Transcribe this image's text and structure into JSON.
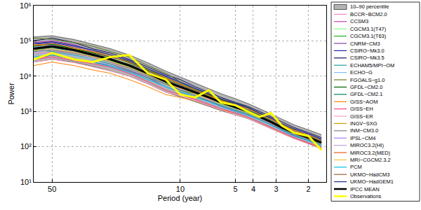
{
  "chart_data": {
    "type": "line",
    "log": true,
    "grid": true,
    "legend": "right",
    "x_label": "Period (year)",
    "y_label": "Power",
    "x": [
      63,
      50,
      38,
      30,
      24,
      19,
      15,
      12,
      10,
      8.3,
      7,
      6,
      5,
      4.3,
      3.7,
      3.2,
      2.8,
      2.4,
      2.0,
      1.7
    ],
    "xlim": [
      63,
      1.6
    ],
    "xticks": [
      50,
      10,
      5,
      4,
      3,
      2
    ],
    "ylim": [
      10,
      1000000
    ],
    "yticks": [
      {
        "value": 10,
        "label": "10¹"
      },
      {
        "value": 100,
        "label": "10²"
      },
      {
        "value": 1000,
        "label": "10³"
      },
      {
        "value": 10000,
        "label": "10⁴"
      },
      {
        "value": 100000,
        "label": "10⁵"
      },
      {
        "value": 1000000,
        "label": "10⁶"
      }
    ],
    "band": {
      "name": "10–90 percentile",
      "color": "#b4b4b4",
      "lower": [
        25000,
        30000,
        25000,
        19000,
        14000,
        10000,
        6000,
        3500,
        2600,
        1900,
        1400,
        1050,
        800,
        630,
        450,
        330,
        240,
        170,
        120,
        90
      ],
      "upper": [
        130000,
        140000,
        110000,
        80000,
        60000,
        40000,
        24000,
        14000,
        9500,
        6500,
        4500,
        3200,
        2300,
        1700,
        1200,
        850,
        600,
        420,
        300,
        220
      ]
    },
    "series": [
      {
        "name": "BCCR−BCM2.0",
        "color": "#ff80c0",
        "values": [
          40000,
          50000,
          45000,
          35000,
          25000,
          15000,
          10000,
          6000,
          4500,
          3000,
          2200,
          1500,
          1100,
          900,
          600,
          450,
          300,
          220,
          150,
          110
        ]
      },
      {
        "name": "CCSM3",
        "color": "#c040c0",
        "values": [
          90000,
          100000,
          80000,
          50000,
          35000,
          25000,
          14000,
          9000,
          6000,
          4000,
          3000,
          2000,
          1500,
          1200,
          800,
          600,
          400,
          300,
          200,
          150
        ]
      },
      {
        "name": "CGCM3.1(T47)",
        "color": "#80ff80",
        "values": [
          70000,
          60000,
          50000,
          40000,
          35000,
          22000,
          15000,
          8000,
          5000,
          3000,
          2000,
          1600,
          1200,
          900,
          650,
          500,
          380,
          260,
          170,
          120
        ]
      },
      {
        "name": "CGCM3.1(T63)",
        "color": "#20b020",
        "values": [
          50000,
          80000,
          60000,
          45000,
          28000,
          18000,
          11000,
          6500,
          4000,
          3200,
          2800,
          2000,
          1400,
          1100,
          750,
          550,
          330,
          240,
          190,
          140
        ]
      },
      {
        "name": "CNRM−CM3",
        "color": "#8040a0",
        "values": [
          30000,
          40000,
          30000,
          25000,
          20000,
          14000,
          9000,
          5000,
          3500,
          2500,
          2000,
          1400,
          1000,
          800,
          600,
          420,
          300,
          200,
          150,
          100
        ]
      },
      {
        "name": "CSIRO−Mk3.0",
        "color": "#2020c0",
        "values": [
          80000,
          90000,
          70000,
          55000,
          40000,
          28000,
          16000,
          10000,
          7000,
          4500,
          3200,
          2200,
          1600,
          1300,
          900,
          650,
          450,
          320,
          230,
          160
        ]
      },
      {
        "name": "CSIRO−Mk3.5",
        "color": "#101060",
        "values": [
          100000,
          120000,
          90000,
          60000,
          45000,
          30000,
          18000,
          11000,
          8000,
          5000,
          3500,
          2500,
          1800,
          1400,
          1000,
          700,
          500,
          350,
          250,
          180
        ]
      },
      {
        "name": "ECHAM5/MPI−OM",
        "color": "#20a0a0",
        "values": [
          60000,
          50000,
          40000,
          30000,
          22000,
          15000,
          9000,
          6000,
          4000,
          2800,
          2000,
          1500,
          1100,
          850,
          600,
          420,
          300,
          210,
          150,
          110
        ]
      },
      {
        "name": "ECHO−G",
        "color": "#80c0ff",
        "values": [
          40000,
          45000,
          38000,
          30000,
          20000,
          13000,
          8000,
          5000,
          3500,
          2600,
          1800,
          1300,
          950,
          750,
          520,
          380,
          270,
          190,
          140,
          100
        ]
      },
      {
        "name": "FGOALS−g1.0",
        "color": "#608020",
        "values": [
          120000,
          110000,
          90000,
          70000,
          50000,
          35000,
          20000,
          12000,
          7000,
          4000,
          3000,
          2000,
          1400,
          1000,
          700,
          500,
          350,
          250,
          180,
          130
        ]
      },
      {
        "name": "GFDL−CM2.0",
        "color": "#006000",
        "values": [
          70000,
          80000,
          60000,
          45000,
          35000,
          25000,
          15000,
          9000,
          6000,
          4200,
          3000,
          2200,
          1700,
          1300,
          900,
          600,
          420,
          300,
          200,
          150
        ]
      },
      {
        "name": "GFDL−CM2.1",
        "color": "#008060",
        "values": [
          55000,
          65000,
          50000,
          38000,
          30000,
          22000,
          14000,
          8000,
          5500,
          3800,
          2700,
          2000,
          1500,
          1100,
          800,
          550,
          380,
          270,
          190,
          140
        ]
      },
      {
        "name": "GISS−AOM",
        "color": "#ff8000",
        "values": [
          20000,
          25000,
          20000,
          15000,
          12000,
          8000,
          5000,
          3000,
          2500,
          2000,
          1500,
          1100,
          900,
          700,
          500,
          350,
          250,
          180,
          130,
          90
        ]
      },
      {
        "name": "GISS−EH",
        "color": "#ff4080",
        "values": [
          30000,
          35000,
          28000,
          22000,
          18000,
          12000,
          7000,
          4000,
          3000,
          2200,
          1600,
          1200,
          900,
          700,
          500,
          360,
          260,
          180,
          130,
          95
        ]
      },
      {
        "name": "GISS−ER",
        "color": "#ffa0c0",
        "values": [
          25000,
          30000,
          24000,
          18000,
          14000,
          10000,
          6000,
          3500,
          2800,
          2000,
          1500,
          1100,
          800,
          650,
          450,
          330,
          240,
          170,
          120,
          85
        ]
      },
      {
        "name": "INGV−SXG",
        "color": "#d0a000",
        "values": [
          80000,
          70000,
          60000,
          50000,
          40000,
          26000,
          16000,
          9000,
          6000,
          4000,
          2800,
          2000,
          1500,
          1200,
          850,
          600,
          420,
          300,
          210,
          150
        ]
      },
      {
        "name": "INM−CM3.0",
        "color": "#808080",
        "values": [
          50000,
          55000,
          45000,
          35000,
          25000,
          17000,
          10000,
          6000,
          4000,
          2800,
          2000,
          1500,
          1100,
          850,
          600,
          430,
          310,
          220,
          160,
          115
        ]
      },
      {
        "name": "IPSL−CM4",
        "color": "#a080ff",
        "values": [
          65000,
          75000,
          55000,
          42000,
          32000,
          21000,
          13000,
          7500,
          5200,
          3600,
          2600,
          1900,
          1400,
          1050,
          750,
          520,
          360,
          260,
          185,
          135
        ]
      },
      {
        "name": "MIROC3.2(HI)",
        "color": "#c0a0e0",
        "values": [
          45000,
          60000,
          50000,
          40000,
          30000,
          20000,
          12000,
          7000,
          4800,
          3400,
          2400,
          1700,
          1250,
          950,
          680,
          480,
          340,
          240,
          170,
          125
        ]
      },
      {
        "name": "MIROC3.2(MED)",
        "color": "#e06020",
        "values": [
          75000,
          85000,
          65000,
          48000,
          36000,
          24000,
          14000,
          8500,
          5800,
          4000,
          2900,
          2100,
          1550,
          1200,
          850,
          600,
          410,
          290,
          210,
          150
        ]
      },
      {
        "name": "MRI−CGCM2.3.2",
        "color": "#f0c040",
        "values": [
          55000,
          60000,
          48000,
          36000,
          26000,
          18000,
          11000,
          6500,
          4600,
          3200,
          2300,
          1700,
          1250,
          950,
          680,
          480,
          340,
          240,
          170,
          125
        ]
      },
      {
        "name": "PCM",
        "color": "#00c0e0",
        "values": [
          35000,
          40000,
          32000,
          25000,
          19000,
          13000,
          8000,
          5000,
          3600,
          2600,
          1900,
          1400,
          1050,
          800,
          580,
          420,
          300,
          210,
          150,
          110
        ]
      },
      {
        "name": "UKMO−HadCM3",
        "color": "#a06030",
        "values": [
          60000,
          70000,
          55000,
          42000,
          32000,
          21000,
          12500,
          7500,
          5200,
          3700,
          2600,
          1900,
          1400,
          1050,
          750,
          530,
          370,
          260,
          190,
          135
        ]
      },
      {
        "name": "UKMO−HadGEM1",
        "color": "#203080",
        "values": [
          85000,
          95000,
          75000,
          55000,
          40000,
          27000,
          16000,
          9500,
          6500,
          4500,
          3200,
          2300,
          1700,
          1300,
          900,
          650,
          450,
          320,
          230,
          165
        ]
      },
      {
        "name": "IPCC MEAN",
        "color": "#000000",
        "line_style": "thick",
        "values": [
          60000,
          70000,
          55000,
          40000,
          30000,
          20000,
          12000,
          7000,
          5000,
          3500,
          2500,
          1800,
          1300,
          1000,
          700,
          500,
          350,
          250,
          180,
          130
        ]
      },
      {
        "name": "Observations",
        "color": "#ffff00",
        "line_style": "thick",
        "values": [
          30000,
          45000,
          30000,
          25000,
          35000,
          40000,
          12000,
          8000,
          3000,
          2500,
          4000,
          1800,
          1500,
          1000,
          700,
          900,
          400,
          250,
          200,
          80
        ]
      }
    ]
  }
}
